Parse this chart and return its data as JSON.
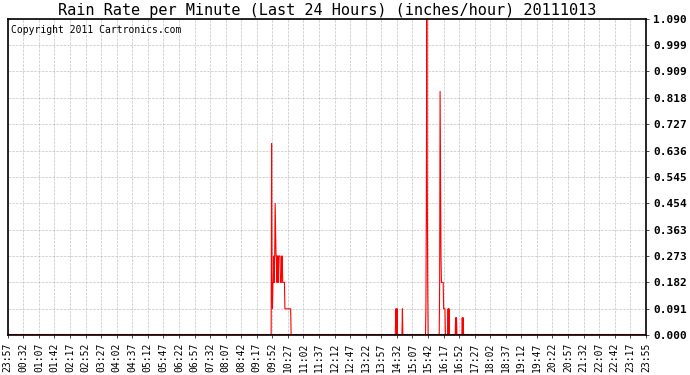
{
  "title": "Rain Rate per Minute (Last 24 Hours) (inches/hour) 20111013",
  "copyright": "Copyright 2011 Cartronics.com",
  "background_color": "#ffffff",
  "plot_bg_color": "#ffffff",
  "line_color": "#ff0000",
  "grid_color": "#aaaaaa",
  "yticks": [
    0.0,
    0.091,
    0.182,
    0.273,
    0.363,
    0.454,
    0.545,
    0.636,
    0.727,
    0.818,
    0.909,
    0.999,
    1.09
  ],
  "ylim": [
    0.0,
    1.09
  ],
  "x_labels": [
    "23:57",
    "00:32",
    "01:07",
    "01:42",
    "02:17",
    "02:52",
    "03:27",
    "04:02",
    "04:37",
    "05:12",
    "05:47",
    "06:22",
    "06:57",
    "07:32",
    "08:07",
    "08:42",
    "09:17",
    "09:52",
    "10:27",
    "11:02",
    "11:37",
    "12:12",
    "12:47",
    "13:22",
    "13:57",
    "14:32",
    "15:07",
    "15:42",
    "16:17",
    "16:52",
    "17:27",
    "18:02",
    "18:37",
    "19:12",
    "19:47",
    "20:22",
    "20:57",
    "21:32",
    "22:07",
    "22:42",
    "23:17",
    "23:55"
  ],
  "num_points": 1440,
  "title_fontsize": 11,
  "copyright_fontsize": 7,
  "tick_fontsize": 7,
  "ytick_fontsize": 8
}
